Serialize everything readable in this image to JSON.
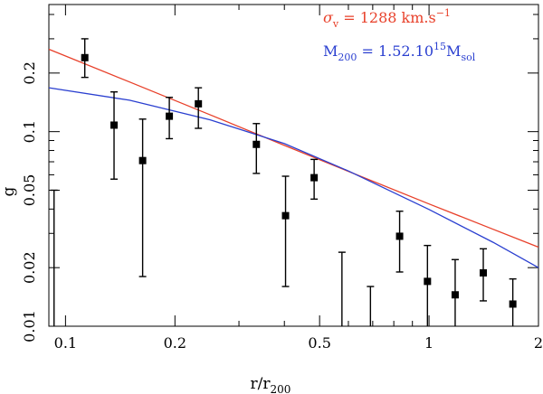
{
  "chart_data": {
    "type": "scatter",
    "title": "",
    "xlabel": "r/r",
    "xlabel_sub": "200",
    "ylabel": "g",
    "xscale": "log",
    "yscale": "log",
    "xlim": [
      0.09,
      2.0
    ],
    "ylim": [
      0.01,
      0.45
    ],
    "x_ticks": [
      0.1,
      0.2,
      0.5,
      1,
      2
    ],
    "x_tick_labels": [
      "0.1",
      "0.2",
      "0.5",
      "1",
      "2"
    ],
    "y_ticks": [
      0.01,
      0.02,
      0.05,
      0.1,
      0.2
    ],
    "y_tick_labels": [
      "0.01",
      "0.02",
      "0.05",
      "0.1",
      "0.2"
    ],
    "points": [
      {
        "x": 0.093,
        "y": null,
        "lo": 0.008,
        "hi": 0.05
      },
      {
        "x": 0.113,
        "y": 0.24,
        "lo": 0.19,
        "hi": 0.3
      },
      {
        "x": 0.136,
        "y": 0.108,
        "lo": 0.057,
        "hi": 0.16
      },
      {
        "x": 0.163,
        "y": 0.071,
        "lo": 0.018,
        "hi": 0.116
      },
      {
        "x": 0.193,
        "y": 0.12,
        "lo": 0.092,
        "hi": 0.15
      },
      {
        "x": 0.232,
        "y": 0.139,
        "lo": 0.104,
        "hi": 0.168
      },
      {
        "x": 0.335,
        "y": 0.086,
        "lo": 0.061,
        "hi": 0.11
      },
      {
        "x": 0.403,
        "y": 0.037,
        "lo": 0.016,
        "hi": 0.059
      },
      {
        "x": 0.483,
        "y": 0.058,
        "lo": 0.045,
        "hi": 0.072
      },
      {
        "x": 0.576,
        "y": null,
        "lo": 0.008,
        "hi": 0.024
      },
      {
        "x": 0.69,
        "y": null,
        "lo": 0.008,
        "hi": 0.016
      },
      {
        "x": 0.83,
        "y": 0.029,
        "lo": 0.019,
        "hi": 0.039
      },
      {
        "x": 0.99,
        "y": 0.017,
        "lo": 0.008,
        "hi": 0.026
      },
      {
        "x": 1.18,
        "y": 0.0145,
        "lo": 0.008,
        "hi": 0.022
      },
      {
        "x": 1.41,
        "y": 0.0188,
        "lo": 0.0135,
        "hi": 0.025
      },
      {
        "x": 1.7,
        "y": 0.013,
        "lo": 0.008,
        "hi": 0.0175
      }
    ],
    "series": [
      {
        "name": "sigma_v fit",
        "color": "#e8402a",
        "x": [
          0.09,
          0.15,
          0.25,
          0.4,
          0.6,
          1.0,
          1.5,
          2.0
        ],
        "y": [
          0.265,
          0.18,
          0.122,
          0.085,
          0.0625,
          0.0425,
          0.0315,
          0.0255
        ]
      },
      {
        "name": "M200 fit",
        "color": "#2a3fd0",
        "x": [
          0.09,
          0.15,
          0.25,
          0.4,
          0.6,
          1.0,
          1.5,
          2.0
        ],
        "y": [
          0.168,
          0.145,
          0.115,
          0.0868,
          0.0628,
          0.0398,
          0.027,
          0.02
        ]
      }
    ]
  },
  "legend": {
    "red": {
      "color": "#e8402a",
      "sym": "σ",
      "sub": "v",
      "text": " = 1288 km.s",
      "sup": "−1"
    },
    "blue": {
      "color": "#2a3fd0",
      "text1": "M",
      "sub": "200",
      "text2": " = 1.52.10",
      "sup": "15",
      "text3": "M",
      "sub2": "sol"
    }
  }
}
